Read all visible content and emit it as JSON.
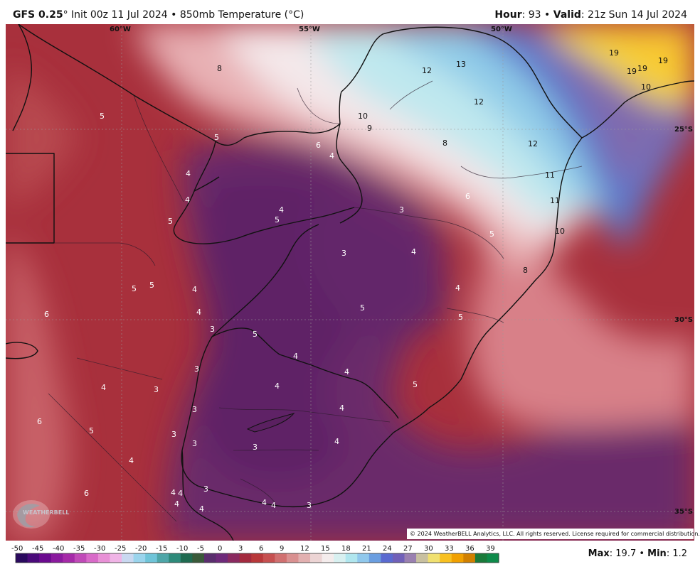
{
  "header": {
    "model": "GFS 0.25",
    "degree": "°",
    "init": " Init 00z 11 Jul 2024 • 850mb Temperature (°C)",
    "hour_label": "Hour",
    "hour_value": ": 93 • ",
    "valid_label": "Valid",
    "valid_value": ": 21z Sun 14 Jul 2024"
  },
  "map": {
    "longitude_labels": [
      {
        "text": "60°W",
        "col": 0
      },
      {
        "text": "55°W",
        "col": 1
      },
      {
        "text": "50°W",
        "col": 2
      }
    ],
    "latitude_labels": [
      {
        "text": "25°S",
        "row": 0
      },
      {
        "text": "30°S",
        "row": 1
      },
      {
        "text": "35°S",
        "row": 2
      }
    ],
    "temperature_labels": [
      {
        "v": "5"
      },
      {
        "v": "8"
      },
      {
        "v": "5"
      },
      {
        "v": "4"
      },
      {
        "v": "4"
      },
      {
        "v": "5"
      },
      {
        "v": "5"
      },
      {
        "v": "4"
      },
      {
        "v": "6"
      },
      {
        "v": "4"
      },
      {
        "v": "10"
      },
      {
        "v": "9"
      },
      {
        "v": "8"
      },
      {
        "v": "12"
      },
      {
        "v": "13"
      },
      {
        "v": "12"
      },
      {
        "v": "12"
      },
      {
        "v": "19"
      },
      {
        "v": "19"
      },
      {
        "v": "19"
      },
      {
        "v": "19"
      },
      {
        "v": "10"
      },
      {
        "v": "11"
      },
      {
        "v": "11"
      },
      {
        "v": "10"
      },
      {
        "v": "6"
      },
      {
        "v": "5"
      },
      {
        "v": "8"
      },
      {
        "v": "3"
      },
      {
        "v": "3"
      },
      {
        "v": "4"
      },
      {
        "v": "4"
      },
      {
        "v": "5"
      },
      {
        "v": "5"
      },
      {
        "v": "5"
      },
      {
        "v": "4"
      },
      {
        "v": "4"
      },
      {
        "v": "4"
      },
      {
        "v": "6"
      },
      {
        "v": "4"
      },
      {
        "v": "5"
      },
      {
        "v": "5"
      },
      {
        "v": "5"
      },
      {
        "v": "4"
      },
      {
        "v": "4"
      },
      {
        "v": "3"
      },
      {
        "v": "3"
      },
      {
        "v": "3"
      },
      {
        "v": "3"
      },
      {
        "v": "4"
      },
      {
        "v": "6"
      },
      {
        "v": "5"
      },
      {
        "v": "3"
      },
      {
        "v": "3"
      },
      {
        "v": "3"
      },
      {
        "v": "4"
      },
      {
        "v": "4"
      },
      {
        "v": "3"
      },
      {
        "v": "4"
      },
      {
        "v": "4"
      },
      {
        "v": "6"
      },
      {
        "v": "4"
      },
      {
        "v": "4"
      },
      {
        "v": "3"
      },
      {
        "v": "4"
      },
      {
        "v": "4"
      }
    ]
  },
  "logo": {
    "text": "WEATHERBELL"
  },
  "copyright": "© 2024 WeatherBELL Analytics, LLC. All rights reserved. License required for commercial distribution.",
  "colorbar": {
    "tick_labels": [
      "-50",
      "-45",
      "-40",
      "-35",
      "-30",
      "-25",
      "-20",
      "-15",
      "-10",
      "-5",
      "0",
      "3",
      "6",
      "9",
      "12",
      "15",
      "18",
      "21",
      "24",
      "27",
      "30",
      "33",
      "36",
      "39"
    ],
    "colors": [
      "#2a0a5e",
      "#4a0a7a",
      "#6a0a8e",
      "#8a1a9e",
      "#a52aa8",
      "#c04ab8",
      "#d86ac8",
      "#e890d6",
      "#f0b4e6",
      "#c9d8f0",
      "#9ad4ec",
      "#6fc4d8",
      "#4ea6a8",
      "#2e8a7a",
      "#1f6a50",
      "#3a5a3a",
      "#5a2e6e",
      "#6e2a7a",
      "#8a2a60",
      "#a32a3e",
      "#b8383a",
      "#c65050",
      "#d07070",
      "#d99090",
      "#e2b0b0",
      "#ecd4d4",
      "#f4ecec",
      "#d8f0f0",
      "#b0e6ee",
      "#90c8ec",
      "#6a9ee0",
      "#5a6ad0",
      "#7060b8",
      "#9a80b0",
      "#c8c0a0",
      "#f0e070",
      "#f8c020",
      "#f0a000",
      "#d08000",
      "#1a7a3a",
      "#0e8a4a"
    ]
  },
  "stats": {
    "max_label": "Max",
    "max_value": ": 19.7 • ",
    "min_label": "Min",
    "min_value": ": 1.2"
  }
}
